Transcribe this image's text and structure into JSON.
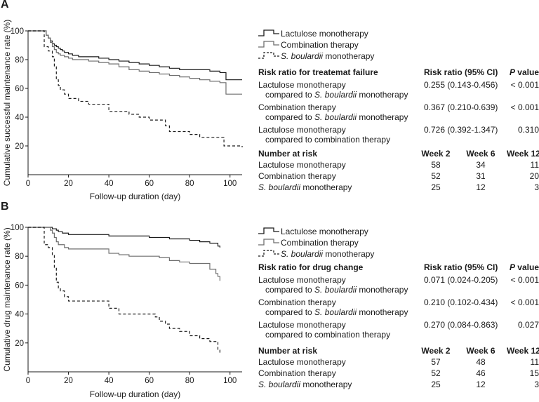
{
  "chart_data": [
    {
      "panel": "A",
      "type": "line",
      "subtype": "kaplan-meier step",
      "ylabel": "Cumulative successful maintenance rate (%)",
      "xlabel": "Follow-up duration (day)",
      "xlim": [
        0,
        106
      ],
      "ylim": [
        0,
        100
      ],
      "xticks": [
        0,
        20,
        40,
        60,
        80,
        100
      ],
      "yticks": [
        20,
        40,
        60,
        80,
        100
      ],
      "legend_position": "top-right",
      "series": [
        {
          "name": "Lactulose monotherapy",
          "style": "solid-black",
          "x": [
            0,
            8,
            9,
            10,
            11,
            12,
            13,
            14,
            15,
            16,
            17,
            18,
            20,
            22,
            25,
            30,
            35,
            40,
            45,
            50,
            55,
            60,
            65,
            70,
            75,
            80,
            85,
            90,
            95,
            98,
            106
          ],
          "y": [
            100,
            100,
            97,
            95,
            93,
            91,
            90,
            89,
            88,
            87,
            86,
            85,
            84,
            83,
            82,
            82,
            81,
            80,
            79,
            78,
            77,
            76,
            75,
            74,
            73,
            73,
            73,
            72,
            71,
            66,
            66
          ]
        },
        {
          "name": "Combination therapy",
          "style": "solid-gray",
          "x": [
            0,
            8,
            9,
            10,
            11,
            12,
            13,
            14,
            15,
            16,
            18,
            20,
            22,
            25,
            30,
            35,
            40,
            45,
            50,
            55,
            60,
            65,
            70,
            75,
            80,
            85,
            90,
            95,
            98,
            106
          ],
          "y": [
            100,
            100,
            97,
            95,
            92,
            89,
            87,
            85,
            84,
            83,
            82,
            81,
            80,
            80,
            79,
            78,
            77,
            75,
            73,
            72,
            71,
            70,
            69,
            68,
            67,
            66,
            65,
            64,
            56,
            56
          ]
        },
        {
          "name": "S. boulardii monotherapy",
          "style": "dashed",
          "x": [
            0,
            8,
            10,
            12,
            13,
            14,
            15,
            16,
            18,
            20,
            25,
            30,
            40,
            50,
            55,
            60,
            68,
            70,
            80,
            85,
            97,
            106
          ],
          "y": [
            100,
            89,
            86,
            82,
            75,
            66,
            62,
            59,
            56,
            53,
            51,
            49,
            44,
            42,
            40,
            38,
            34,
            30,
            28,
            26,
            20,
            19
          ]
        }
      ]
    },
    {
      "panel": "B",
      "type": "line",
      "subtype": "kaplan-meier step",
      "ylabel": "Cumulative drug maintenance rate (%)",
      "xlabel": "Follow-up duration (day)",
      "xlim": [
        0,
        106
      ],
      "ylim": [
        0,
        100
      ],
      "xticks": [
        0,
        20,
        40,
        60,
        80,
        100
      ],
      "yticks": [
        20,
        40,
        60,
        80,
        100
      ],
      "legend_position": "top-right",
      "series": [
        {
          "name": "Lactulose monotherapy",
          "style": "solid-black",
          "x": [
            0,
            10,
            12,
            14,
            15,
            17,
            20,
            25,
            30,
            40,
            50,
            60,
            70,
            80,
            85,
            90,
            94,
            95
          ],
          "y": [
            100,
            100,
            99,
            98,
            97,
            96,
            95,
            95,
            95,
            94,
            94,
            93,
            92,
            91,
            90,
            89,
            87,
            86
          ]
        },
        {
          "name": "Combination therapy",
          "style": "solid-gray",
          "x": [
            0,
            10,
            11,
            12,
            13,
            14,
            15,
            18,
            20,
            30,
            40,
            45,
            50,
            60,
            65,
            70,
            75,
            80,
            90,
            93,
            94,
            95
          ],
          "y": [
            100,
            100,
            98,
            96,
            93,
            90,
            88,
            86,
            85,
            85,
            82,
            81,
            80,
            80,
            79,
            77,
            76,
            75,
            71,
            68,
            66,
            63
          ]
        },
        {
          "name": "S. boulardii monotherapy",
          "style": "dashed",
          "x": [
            0,
            8,
            10,
            12,
            13,
            14,
            15,
            16,
            18,
            20,
            30,
            40,
            45,
            60,
            63,
            65,
            68,
            70,
            75,
            80,
            85,
            90,
            94,
            95
          ],
          "y": [
            100,
            88,
            86,
            81,
            72,
            62,
            58,
            56,
            52,
            49,
            49,
            44,
            40,
            40,
            38,
            35,
            33,
            30,
            28,
            25,
            23,
            21,
            15,
            13
          ]
        }
      ]
    }
  ],
  "panels": [
    {
      "letter": "A",
      "legend": [
        "Lactulose monotherapy",
        "Combination therapy",
        "S. boulardii monotherapy"
      ],
      "table": {
        "header": {
          "label": "Risk ratio for treatemat failure",
          "col1": "Risk ratio (95% CI)",
          "col2_italic": "P",
          "col2_rest": " value"
        },
        "rows": [
          {
            "line1": "Lactulose monotherapy",
            "line2_prefix": "compared to ",
            "line2_italic": "S. boulardii",
            "line2_suffix": " monotherapy",
            "ratio": "0.255 (0.143-0.456)",
            "p": "< 0.001"
          },
          {
            "line1": "Combination therapy",
            "line2_prefix": "compared to ",
            "line2_italic": "S. boulardii",
            "line2_suffix": " monotherapy",
            "ratio": "0.367 (0.210-0.639)",
            "p": "< 0.001"
          },
          {
            "line1": "Lactulose monotherapy",
            "line2_prefix": "compared to combination therapy",
            "line2_italic": "",
            "line2_suffix": "",
            "ratio": "0.726 (0.392-1.347)",
            "p": "0.310"
          }
        ]
      },
      "number_at_risk": {
        "header": "Number at risk",
        "weeks": [
          "Week 2",
          "Week 6",
          "Week 12"
        ],
        "rows": [
          {
            "label_italic": "",
            "label": "Lactulose monotherapy",
            "values": [
              "58",
              "34",
              "11"
            ]
          },
          {
            "label_italic": "",
            "label": "Combination therapy",
            "values": [
              "52",
              "31",
              "20"
            ]
          },
          {
            "label_italic": "S. boulardii",
            "label": " monotherapy",
            "values": [
              "25",
              "12",
              "3"
            ]
          }
        ]
      }
    },
    {
      "letter": "B",
      "legend": [
        "Lactulose monotherapy",
        "Combination therapy",
        "S. boulardii monotherapy"
      ],
      "table": {
        "header": {
          "label": "Risk ratio for drug change",
          "col1": "Risk ratio (95% CI)",
          "col2_italic": "P",
          "col2_rest": " value"
        },
        "rows": [
          {
            "line1": "Lactulose monotherapy",
            "line2_prefix": "compared to ",
            "line2_italic": "S. boulardii",
            "line2_suffix": " monotherapy",
            "ratio": "0.071 (0.024-0.205)",
            "p": "< 0.001"
          },
          {
            "line1": "Combination therapy",
            "line2_prefix": "compared to ",
            "line2_italic": "S. boulardii",
            "line2_suffix": " monotherapy",
            "ratio": "0.210 (0.102-0.434)",
            "p": "< 0.001"
          },
          {
            "line1": "Lactulose monotherapy",
            "line2_prefix": "compared to combination therapy",
            "line2_italic": "",
            "line2_suffix": "",
            "ratio": "0.270 (0.084-0.863)",
            "p": "0.027"
          }
        ]
      },
      "number_at_risk": {
        "header": "Number at risk",
        "weeks": [
          "Week 2",
          "Week 6",
          "Week 12"
        ],
        "rows": [
          {
            "label_italic": "",
            "label": "Lactulose monotherapy",
            "values": [
              "57",
              "48",
              "11"
            ]
          },
          {
            "label_italic": "",
            "label": "Combination therapy",
            "values": [
              "52",
              "46",
              "15"
            ]
          },
          {
            "label_italic": "S. boulardii",
            "label": " monotherapy",
            "values": [
              "25",
              "12",
              "3"
            ]
          }
        ]
      }
    }
  ],
  "colors": {
    "lactulose": "#1a1a1a",
    "combination": "#6e6e6e",
    "boulardii": "#1a1a1a",
    "axis": "#1a1a1a"
  }
}
